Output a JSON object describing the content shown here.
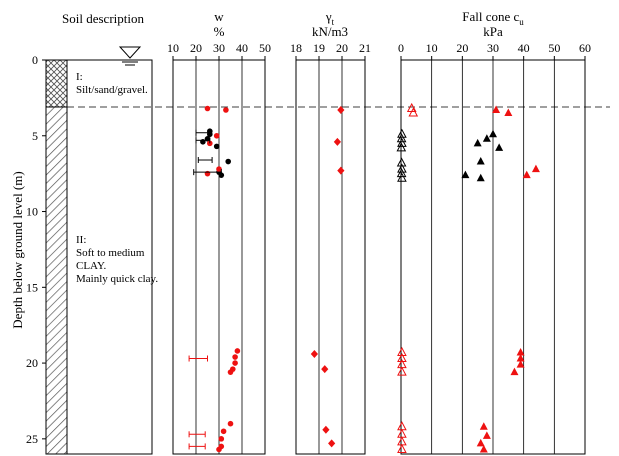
{
  "colors": {
    "red": "#ee1111",
    "black": "#000000",
    "hatch": "#555555"
  },
  "chart_data": [
    {
      "type": "strip",
      "panel": "soil-description",
      "title": "Soil description",
      "ylabel": "Depth below ground level (m)",
      "yticks": [
        0,
        5,
        10,
        15,
        20,
        25
      ],
      "ylim": [
        0,
        26
      ],
      "groundwater_symbol": "water-table",
      "groundwater_depth": 0,
      "layer_boundary_depth": 3.1,
      "layers": [
        {
          "top": 0,
          "bottom": 3.1,
          "pattern": "crosshatch",
          "label_lines": [
            "I:",
            "Silt/sand/gravel."
          ]
        },
        {
          "top": 3.1,
          "bottom": 26,
          "pattern": "diagonal",
          "label_lines": [
            "II:",
            "Soft to medium",
            "CLAY.",
            "Mainly quick clay."
          ]
        }
      ]
    },
    {
      "type": "scatter",
      "panel": "water-content",
      "title": "w",
      "unit": "%",
      "xticks": [
        10,
        20,
        30,
        40,
        50
      ],
      "xlim": [
        10,
        50
      ],
      "ylim": [
        0,
        26
      ],
      "series": [
        {
          "name": "w black",
          "color": "#000000",
          "marker": "circle",
          "points": [
            [
              26,
              4.7
            ],
            [
              26,
              4.9
            ],
            [
              25,
              5.2
            ],
            [
              23,
              5.4
            ],
            [
              29,
              5.7
            ],
            [
              34,
              6.7
            ],
            [
              30,
              7.4
            ],
            [
              31,
              7.6
            ]
          ]
        },
        {
          "name": "w red",
          "color": "#ee1111",
          "marker": "circle",
          "points": [
            [
              25,
              3.2
            ],
            [
              33,
              3.3
            ],
            [
              29,
              5.0
            ],
            [
              26,
              5.5
            ],
            [
              30,
              7.2
            ],
            [
              25,
              7.5
            ],
            [
              38,
              19.2
            ],
            [
              37,
              19.6
            ],
            [
              37,
              20.0
            ],
            [
              36,
              20.4
            ],
            [
              35,
              20.6
            ],
            [
              35,
              24.0
            ],
            [
              32,
              24.5
            ],
            [
              31,
              25.0
            ],
            [
              31,
              25.5
            ],
            [
              30,
              25.7
            ]
          ]
        },
        {
          "name": "range black",
          "color": "#000000",
          "intervals": [
            [
              20,
              26,
              4.8
            ],
            [
              20,
              26,
              5.3
            ],
            [
              21,
              27,
              6.6
            ],
            [
              19,
              31,
              7.4
            ]
          ]
        },
        {
          "name": "range red",
          "color": "#ee1111",
          "intervals": [
            [
              17,
              25,
              19.7
            ],
            [
              17,
              24,
              24.7
            ],
            [
              17,
              24,
              25.5
            ]
          ]
        }
      ]
    },
    {
      "type": "scatter",
      "panel": "unit-weight",
      "title": "γ",
      "title_sub": "t",
      "unit": "kN/m3",
      "xticks": [
        18,
        19,
        20,
        21
      ],
      "xlim": [
        18,
        21
      ],
      "ylim": [
        0,
        26
      ],
      "series": [
        {
          "name": "gamma",
          "color": "#ee1111",
          "marker": "diamond",
          "points": [
            [
              19.95,
              3.3
            ],
            [
              19.8,
              5.4
            ],
            [
              19.95,
              7.3
            ],
            [
              18.8,
              19.4
            ],
            [
              19.25,
              20.4
            ],
            [
              19.3,
              24.4
            ],
            [
              19.55,
              25.3
            ]
          ]
        }
      ]
    },
    {
      "type": "scatter",
      "panel": "fall-cone",
      "title": "Fall cone c",
      "title_sub": "u",
      "unit": "kPa",
      "xticks": [
        0,
        10,
        20,
        30,
        40,
        50,
        60
      ],
      "xlim": [
        0,
        60
      ],
      "ylim": [
        0,
        26
      ],
      "series": [
        {
          "name": "remoulded black",
          "color": "#000000",
          "marker": "triangle-open",
          "points": [
            [
              0.3,
              4.9
            ],
            [
              0.2,
              5.2
            ],
            [
              0.3,
              5.5
            ],
            [
              0.1,
              5.8
            ],
            [
              0.2,
              6.8
            ],
            [
              0.3,
              7.2
            ],
            [
              0.2,
              7.5
            ],
            [
              0.3,
              7.8
            ]
          ]
        },
        {
          "name": "undisturbed black",
          "color": "#000000",
          "marker": "triangle",
          "points": [
            [
              30,
              4.9
            ],
            [
              28,
              5.2
            ],
            [
              25,
              5.5
            ],
            [
              32,
              5.8
            ],
            [
              26,
              6.7
            ],
            [
              21,
              7.6
            ],
            [
              26,
              7.8
            ]
          ]
        },
        {
          "name": "remoulded red",
          "color": "#ee1111",
          "marker": "triangle-open",
          "points": [
            [
              3.5,
              3.2
            ],
            [
              4,
              3.5
            ],
            [
              0.3,
              19.3
            ],
            [
              0.3,
              19.7
            ],
            [
              0.3,
              20.1
            ],
            [
              0.3,
              20.6
            ],
            [
              0.3,
              24.2
            ],
            [
              0.3,
              24.7
            ],
            [
              0.3,
              25.2
            ],
            [
              0.3,
              25.7
            ]
          ]
        },
        {
          "name": "undisturbed red",
          "color": "#ee1111",
          "marker": "triangle",
          "points": [
            [
              31,
              3.3
            ],
            [
              35,
              3.5
            ],
            [
              44,
              7.2
            ],
            [
              41,
              7.6
            ],
            [
              39,
              19.3
            ],
            [
              39,
              19.7
            ],
            [
              39,
              20.1
            ],
            [
              37,
              20.6
            ],
            [
              27,
              24.2
            ],
            [
              28,
              24.8
            ],
            [
              26,
              25.3
            ],
            [
              27,
              25.7
            ]
          ]
        }
      ]
    }
  ]
}
